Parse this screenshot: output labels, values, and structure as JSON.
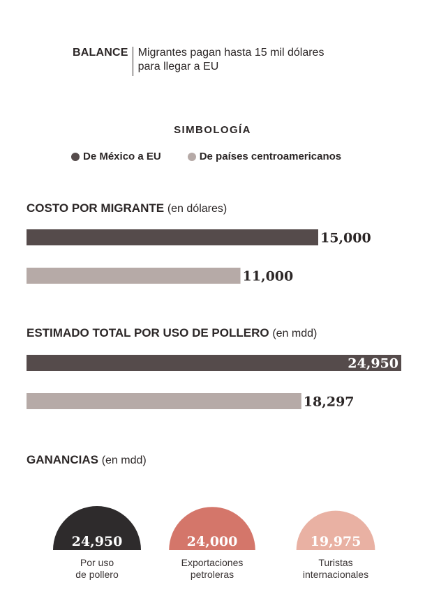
{
  "header": {
    "kicker": "BALANCE",
    "title": "Migrantes pagan hasta 15 mil dólares para llegar a EU"
  },
  "legend": {
    "title": "SIMBOLOGÍA",
    "items": [
      {
        "label": "De México a EU",
        "color": "#554b4b"
      },
      {
        "label": "De países centroamericanos",
        "color": "#b6aaa7"
      }
    ]
  },
  "colors": {
    "mexico": "#554b4b",
    "centroamerica": "#b6aaa7",
    "value_dark": "#2b2626",
    "value_light": "#ffffff",
    "pollero": "#2e2b2c",
    "petroleo": "#d4766a",
    "turismo": "#e9b1a3"
  },
  "chart_data": [
    {
      "type": "bar",
      "orientation": "horizontal",
      "title": "COSTO POR MIGRANTE",
      "unit": "(en dólares)",
      "categories": [
        "De México a EU",
        "De países centroamericanos"
      ],
      "values": [
        15000,
        11000
      ],
      "value_labels": [
        "15,000",
        "11,000"
      ]
    },
    {
      "type": "bar",
      "orientation": "horizontal",
      "title": "ESTIMADO TOTAL POR USO DE POLLERO",
      "unit": "(en mdd)",
      "categories": [
        "De México a EU",
        "De países centroamericanos"
      ],
      "values": [
        24950,
        18297
      ],
      "value_labels": [
        "24,950",
        "18,297"
      ]
    },
    {
      "type": "semicircle",
      "title": "GANANCIAS",
      "unit": "(en mdd)",
      "categories": [
        "Por uso de pollero",
        "Exportaciones petroleras",
        "Turistas internacionales"
      ],
      "category_lines": [
        [
          "Por uso",
          "de pollero"
        ],
        [
          "Exportaciones",
          "petroleras"
        ],
        [
          "Turistas",
          "internacionales"
        ]
      ],
      "values": [
        24950,
        24000,
        19975
      ],
      "value_labels": [
        "24,950",
        "24,000",
        "19,975"
      ]
    }
  ]
}
